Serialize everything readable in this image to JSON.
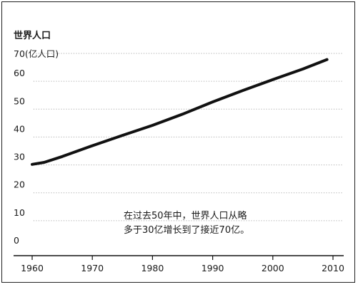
{
  "chart_data": {
    "type": "line",
    "title": "世界人口",
    "ylabel": "(亿人口)",
    "xlabel": "",
    "xlim": [
      1960,
      2010
    ],
    "ylim": [
      0,
      70
    ],
    "x_ticks": [
      1960,
      1970,
      1980,
      1990,
      2000,
      2010
    ],
    "y_ticks": [
      0,
      10,
      20,
      30,
      40,
      50,
      60,
      70
    ],
    "grid": "horizontal-dotted",
    "series": [
      {
        "color": "#111111",
        "x": [
          1960,
          1962,
          1965,
          1970,
          1975,
          1980,
          1985,
          1990,
          1995,
          2000,
          2005,
          2009
        ],
        "y": [
          30.2,
          30.9,
          33.0,
          36.9,
          40.6,
          44.2,
          48.2,
          52.6,
          56.7,
          60.6,
          64.4,
          67.8
        ]
      }
    ],
    "annotation": {
      "line1": "在过去50年中，世界人口从略",
      "line2": "多于30亿增长到了接近70亿。"
    }
  }
}
